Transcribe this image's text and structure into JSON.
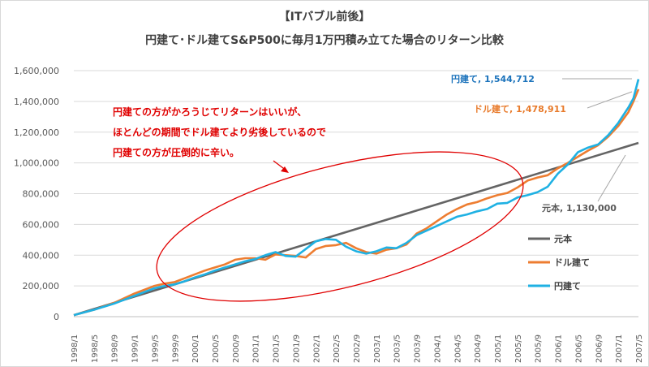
{
  "chart_data": {
    "type": "line",
    "title_line1": "【ITバブル前後】",
    "title_line2": "円建て･ドル建てS&P500に毎月1万円積み立てた場合のリターン比較",
    "ylim": [
      0,
      1600000
    ],
    "yticks": [
      "0",
      "200,000",
      "400,000",
      "600,000",
      "800,000",
      "1,000,000",
      "1,200,000",
      "1,400,000",
      "1,600,000"
    ],
    "x_tick_labels": [
      "1998/1",
      "1998/5",
      "1998/9",
      "1999/1",
      "1999/5",
      "1999/9",
      "2000/1",
      "2000/5",
      "2000/9",
      "2001/1",
      "2001/5",
      "2001/9",
      "2002/1",
      "2002/5",
      "2002/9",
      "2003/1",
      "2003/5",
      "2003/9",
      "2004/1",
      "2004/5",
      "2004/9",
      "2005/1",
      "2005/5",
      "2005/9",
      "2006/1",
      "2006/5",
      "2006/9",
      "2007/1",
      "2007/5"
    ],
    "grid": true,
    "legend_position": "right",
    "series": [
      {
        "name": "元本",
        "color": "#646464",
        "points": [
          [
            0,
            10000
          ],
          [
            112,
            1130000
          ]
        ]
      },
      {
        "name": "ドル建て",
        "color": "#ED7D31",
        "points": [
          [
            0,
            10000
          ],
          [
            4,
            45000
          ],
          [
            8,
            90000
          ],
          [
            10,
            120000
          ],
          [
            12,
            150000
          ],
          [
            14,
            175000
          ],
          [
            16,
            200000
          ],
          [
            18,
            215000
          ],
          [
            20,
            225000
          ],
          [
            22,
            250000
          ],
          [
            24,
            275000
          ],
          [
            26,
            300000
          ],
          [
            28,
            320000
          ],
          [
            30,
            340000
          ],
          [
            32,
            370000
          ],
          [
            34,
            380000
          ],
          [
            36,
            380000
          ],
          [
            38,
            370000
          ],
          [
            40,
            405000
          ],
          [
            42,
            400000
          ],
          [
            44,
            395000
          ],
          [
            46,
            385000
          ],
          [
            48,
            440000
          ],
          [
            50,
            460000
          ],
          [
            52,
            465000
          ],
          [
            54,
            480000
          ],
          [
            56,
            445000
          ],
          [
            58,
            420000
          ],
          [
            60,
            410000
          ],
          [
            62,
            435000
          ],
          [
            64,
            445000
          ],
          [
            66,
            470000
          ],
          [
            68,
            540000
          ],
          [
            70,
            575000
          ],
          [
            72,
            620000
          ],
          [
            74,
            665000
          ],
          [
            76,
            700000
          ],
          [
            78,
            730000
          ],
          [
            80,
            745000
          ],
          [
            82,
            770000
          ],
          [
            84,
            790000
          ],
          [
            86,
            805000
          ],
          [
            88,
            840000
          ],
          [
            90,
            885000
          ],
          [
            92,
            905000
          ],
          [
            94,
            920000
          ],
          [
            96,
            965000
          ],
          [
            98,
            1000000
          ],
          [
            100,
            1040000
          ],
          [
            102,
            1080000
          ],
          [
            104,
            1115000
          ],
          [
            106,
            1170000
          ],
          [
            108,
            1240000
          ],
          [
            110,
            1330000
          ],
          [
            111,
            1400000
          ],
          [
            112,
            1478911
          ]
        ]
      },
      {
        "name": "円建て",
        "color": "#1FB1E3",
        "points": [
          [
            0,
            10000
          ],
          [
            4,
            45000
          ],
          [
            8,
            85000
          ],
          [
            10,
            110000
          ],
          [
            12,
            135000
          ],
          [
            14,
            160000
          ],
          [
            16,
            185000
          ],
          [
            18,
            200000
          ],
          [
            20,
            210000
          ],
          [
            22,
            230000
          ],
          [
            24,
            255000
          ],
          [
            26,
            275000
          ],
          [
            28,
            300000
          ],
          [
            30,
            320000
          ],
          [
            32,
            340000
          ],
          [
            34,
            360000
          ],
          [
            36,
            375000
          ],
          [
            38,
            400000
          ],
          [
            40,
            420000
          ],
          [
            42,
            395000
          ],
          [
            44,
            390000
          ],
          [
            46,
            440000
          ],
          [
            48,
            490000
          ],
          [
            50,
            505000
          ],
          [
            52,
            500000
          ],
          [
            54,
            455000
          ],
          [
            56,
            425000
          ],
          [
            58,
            410000
          ],
          [
            60,
            425000
          ],
          [
            62,
            450000
          ],
          [
            64,
            445000
          ],
          [
            66,
            480000
          ],
          [
            68,
            530000
          ],
          [
            70,
            560000
          ],
          [
            72,
            590000
          ],
          [
            74,
            620000
          ],
          [
            76,
            650000
          ],
          [
            78,
            665000
          ],
          [
            80,
            685000
          ],
          [
            82,
            700000
          ],
          [
            84,
            735000
          ],
          [
            86,
            740000
          ],
          [
            88,
            775000
          ],
          [
            90,
            790000
          ],
          [
            92,
            810000
          ],
          [
            94,
            845000
          ],
          [
            96,
            930000
          ],
          [
            98,
            990000
          ],
          [
            100,
            1070000
          ],
          [
            102,
            1100000
          ],
          [
            104,
            1120000
          ],
          [
            106,
            1180000
          ],
          [
            108,
            1260000
          ],
          [
            110,
            1360000
          ],
          [
            111,
            1420000
          ],
          [
            112,
            1544712
          ]
        ]
      }
    ],
    "callouts": {
      "yen": "円建て, 1,544,712",
      "dollar": "ドル建て, 1,478,911",
      "principal": "元本, 1,130,000"
    },
    "annotation_lines": [
      "円建ての方がかろうじてリターンはいいが、",
      "ほとんどの期間でドル建てより劣後しているので",
      "円建ての方が圧倒的に辛い。"
    ],
    "legend": [
      "元本",
      "ドル建て",
      "円建て"
    ]
  }
}
